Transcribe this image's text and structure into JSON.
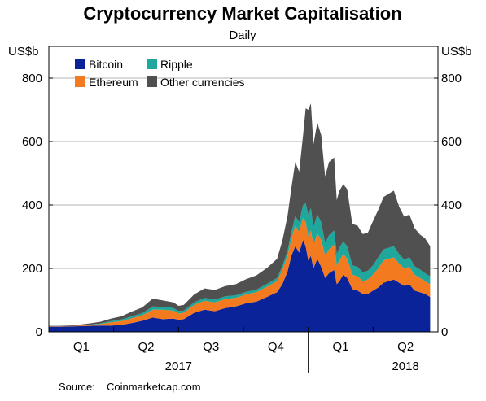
{
  "chart_data": {
    "type": "area",
    "stacked": true,
    "title": "Cryptocurrency Market Capitalisation",
    "subtitle": "Daily",
    "ylabel_left": "US$b",
    "ylabel_right": "US$b",
    "ylim": [
      0,
      900
    ],
    "yticks": [
      0,
      200,
      400,
      600,
      800
    ],
    "grid": true,
    "legend_position": "top-left",
    "x_labels": {
      "quarters": [
        {
          "label": "Q1",
          "at": 2017.125
        },
        {
          "label": "Q2",
          "at": 2017.375
        },
        {
          "label": "Q3",
          "at": 2017.625
        },
        {
          "label": "Q4",
          "at": 2017.875
        },
        {
          "label": "Q1",
          "at": 2018.125
        },
        {
          "label": "Q2",
          "at": 2018.375
        }
      ],
      "years": [
        {
          "label": "2017",
          "at": 2017.5
        },
        {
          "label": "2018",
          "at": 2018.375
        }
      ],
      "dividers": [
        2017.25,
        2017.5,
        2017.75,
        2018.0,
        2018.25
      ]
    },
    "x": [
      2017.0,
      2017.04,
      2017.08,
      2017.12,
      2017.16,
      2017.2,
      2017.24,
      2017.28,
      2017.32,
      2017.36,
      2017.4,
      2017.44,
      2017.48,
      2017.5,
      2017.52,
      2017.56,
      2017.6,
      2017.64,
      2017.68,
      2017.72,
      2017.76,
      2017.8,
      2017.84,
      2017.88,
      2017.9,
      2017.92,
      2017.935,
      2017.95,
      2017.965,
      2017.98,
      2017.99,
      2018.0,
      2018.01,
      2018.02,
      2018.035,
      2018.05,
      2018.065,
      2018.08,
      2018.1,
      2018.11,
      2018.12,
      2018.135,
      2018.15,
      2018.17,
      2018.19,
      2018.21,
      2018.23,
      2018.25,
      2018.27,
      2018.29,
      2018.31,
      2018.33,
      2018.35,
      2018.37,
      2018.39,
      2018.41,
      2018.43,
      2018.45,
      2018.47
    ],
    "series": [
      {
        "name": "Bitcoin",
        "color": "#0b2399",
        "values": [
          16,
          16,
          17,
          18,
          19,
          20,
          20,
          22,
          28,
          35,
          45,
          40,
          42,
          38,
          40,
          60,
          70,
          65,
          75,
          80,
          90,
          95,
          110,
          125,
          150,
          190,
          240,
          270,
          250,
          290,
          270,
          225,
          240,
          200,
          230,
          205,
          170,
          185,
          195,
          150,
          160,
          180,
          170,
          135,
          130,
          120,
          120,
          130,
          140,
          155,
          160,
          165,
          155,
          145,
          150,
          130,
          125,
          120,
          110
        ]
      },
      {
        "name": "Ethereum",
        "color": "#f47a20",
        "values": [
          1,
          1,
          1,
          2,
          3,
          5,
          10,
          12,
          15,
          17,
          25,
          30,
          25,
          20,
          20,
          25,
          28,
          28,
          28,
          27,
          28,
          30,
          32,
          35,
          45,
          50,
          55,
          65,
          65,
          70,
          75,
          75,
          80,
          75,
          80,
          85,
          70,
          75,
          80,
          60,
          65,
          65,
          60,
          45,
          45,
          40,
          45,
          50,
          60,
          70,
          70,
          70,
          60,
          55,
          55,
          50,
          45,
          40,
          40
        ]
      },
      {
        "name": "Ripple",
        "color": "#1fa79b",
        "values": [
          0,
          0,
          0,
          0,
          1,
          2,
          4,
          5,
          6,
          7,
          10,
          9,
          8,
          8,
          7,
          8,
          9,
          9,
          9,
          8,
          8,
          8,
          9,
          10,
          12,
          15,
          20,
          30,
          30,
          40,
          60,
          70,
          70,
          55,
          60,
          55,
          40,
          45,
          45,
          35,
          40,
          40,
          40,
          30,
          30,
          28,
          28,
          30,
          35,
          35,
          35,
          35,
          30,
          28,
          30,
          27,
          27,
          25,
          25
        ]
      },
      {
        "name": "Other currencies",
        "color": "#505050",
        "values": [
          2,
          2,
          2,
          3,
          4,
          5,
          8,
          10,
          15,
          18,
          25,
          20,
          18,
          16,
          18,
          25,
          30,
          30,
          32,
          35,
          40,
          45,
          50,
          60,
          80,
          110,
          140,
          170,
          160,
          220,
          300,
          330,
          330,
          260,
          290,
          275,
          210,
          230,
          230,
          170,
          180,
          180,
          180,
          130,
          130,
          120,
          120,
          140,
          150,
          165,
          170,
          175,
          150,
          135,
          135,
          120,
          110,
          110,
          95
        ]
      }
    ]
  },
  "footer": {
    "source_label": "Source:",
    "source_value": "Coinmarketcap.com"
  }
}
